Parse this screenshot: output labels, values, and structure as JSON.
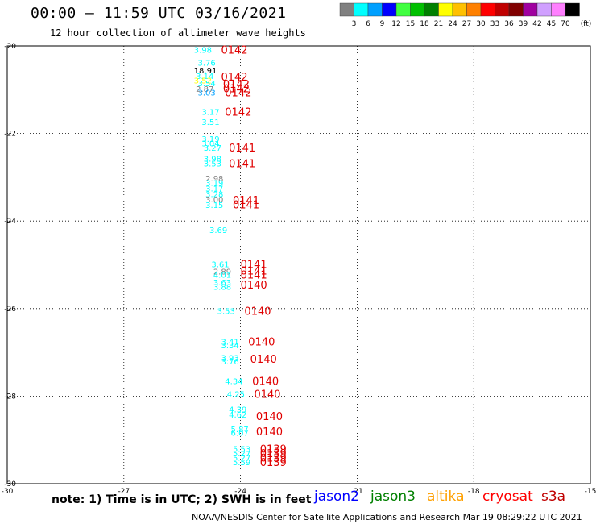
{
  "title": "00:00 – 11:59 UTC 03/16/2021",
  "subtitle": "12 hour collection of altimeter wave heights",
  "note": "note:  1) Time is in UTC; 2) SWH is in feet",
  "credit": "NOAA/NESDIS Center for Satellite Applications and Research    Mar 19 08:29:22 UTC 2021",
  "legend": {
    "unit": "(ft)",
    "labels": [
      "3",
      "6",
      "9",
      "12",
      "15",
      "18",
      "21",
      "24",
      "27",
      "30",
      "33",
      "36",
      "39",
      "42",
      "45",
      "70"
    ],
    "colors": [
      "#808080",
      "#00ffff",
      "#00a0ff",
      "#0000ff",
      "#40ff40",
      "#00c000",
      "#008000",
      "#ffff00",
      "#ffc000",
      "#ff8000",
      "#ff0000",
      "#c00000",
      "#800000",
      "#a000a0",
      "#d0a0ff",
      "#ff80ff",
      "#000000"
    ]
  },
  "satellites": [
    {
      "name": "jason2",
      "color": "#0000ff"
    },
    {
      "name": "jason3",
      "color": "#008000"
    },
    {
      "name": "altika",
      "color": "#ffa000"
    },
    {
      "name": "cryosat",
      "color": "#ff0000"
    },
    {
      "name": "s3a",
      "color": "#c00000"
    }
  ],
  "axes": {
    "x_ticks": [
      "-30",
      "-27",
      "-24",
      "-21",
      "-18",
      "-15"
    ],
    "y_ticks": [
      "-20",
      "-22",
      "-24",
      "-26",
      "-28",
      "-30"
    ]
  },
  "heights": [
    {
      "v": "3.98",
      "x": -25.2,
      "y": -20.08,
      "c": "#00ffff"
    },
    {
      "v": "3.76",
      "x": -25.1,
      "y": -20.38,
      "c": "#00ffff"
    },
    {
      "v": "18.91",
      "x": -25.2,
      "y": -20.55,
      "c": "#000000"
    },
    {
      "v": "3.14",
      "x": -25.15,
      "y": -20.68,
      "c": "#00ffff"
    },
    {
      "v": "3.52",
      "x": -25.2,
      "y": -20.78,
      "c": "#ffff00"
    },
    {
      "v": "3.54",
      "x": -25.1,
      "y": -20.85,
      "c": "#00ffff"
    },
    {
      "v": "2.87",
      "x": -25.15,
      "y": -20.98,
      "c": "#808080"
    },
    {
      "v": "3.03",
      "x": -25.1,
      "y": -21.06,
      "c": "#00a0ff"
    },
    {
      "v": "3.17",
      "x": -25.0,
      "y": -21.5,
      "c": "#00ffff"
    },
    {
      "v": "3.51",
      "x": -25.0,
      "y": -21.73,
      "c": "#00ffff"
    },
    {
      "v": "3.19",
      "x": -25.0,
      "y": -22.12,
      "c": "#00ffff"
    },
    {
      "v": "3.04",
      "x": -25.0,
      "y": -22.22,
      "c": "#00ffff"
    },
    {
      "v": "3.27",
      "x": -24.95,
      "y": -22.32,
      "c": "#00ffff"
    },
    {
      "v": "3.98",
      "x": -24.95,
      "y": -22.57,
      "c": "#00ffff"
    },
    {
      "v": "3.53",
      "x": -24.95,
      "y": -22.68,
      "c": "#00ffff"
    },
    {
      "v": "2.98",
      "x": -24.9,
      "y": -23.02,
      "c": "#808080"
    },
    {
      "v": "3.19",
      "x": -24.9,
      "y": -23.12,
      "c": "#00ffff"
    },
    {
      "v": "3.17",
      "x": -24.9,
      "y": -23.25,
      "c": "#00ffff"
    },
    {
      "v": "3.28",
      "x": -24.9,
      "y": -23.38,
      "c": "#00ffff"
    },
    {
      "v": "3.00",
      "x": -24.9,
      "y": -23.5,
      "c": "#808080"
    },
    {
      "v": "3.15",
      "x": -24.9,
      "y": -23.63,
      "c": "#00ffff"
    },
    {
      "v": "3.69",
      "x": -24.8,
      "y": -24.2,
      "c": "#00ffff"
    },
    {
      "v": "3.61",
      "x": -24.75,
      "y": -24.98,
      "c": "#00ffff"
    },
    {
      "v": "2.89",
      "x": -24.7,
      "y": -25.15,
      "c": "#808080"
    },
    {
      "v": "4.01",
      "x": -24.7,
      "y": -25.22,
      "c": "#00ffff"
    },
    {
      "v": "3.63",
      "x": -24.7,
      "y": -25.4,
      "c": "#00ffff"
    },
    {
      "v": "3.88",
      "x": -24.7,
      "y": -25.5,
      "c": "#00ffff"
    },
    {
      "v": "3.53",
      "x": -24.6,
      "y": -26.05,
      "c": "#00ffff"
    },
    {
      "v": "3.41",
      "x": -24.5,
      "y": -26.75,
      "c": "#00ffff"
    },
    {
      "v": "3.34",
      "x": -24.5,
      "y": -26.83,
      "c": "#00ffff"
    },
    {
      "v": "3.93",
      "x": -24.5,
      "y": -27.12,
      "c": "#00ffff"
    },
    {
      "v": "3.76",
      "x": -24.5,
      "y": -27.2,
      "c": "#00ffff"
    },
    {
      "v": "4.34",
      "x": -24.4,
      "y": -27.65,
      "c": "#00ffff"
    },
    {
      "v": "4.25",
      "x": -24.35,
      "y": -27.95,
      "c": "#00ffff"
    },
    {
      "v": "4.39",
      "x": -24.3,
      "y": -28.3,
      "c": "#00ffff"
    },
    {
      "v": "4.62",
      "x": -24.3,
      "y": -28.42,
      "c": "#00ffff"
    },
    {
      "v": "5.87",
      "x": -24.25,
      "y": -28.75,
      "c": "#00ffff"
    },
    {
      "v": "6.07",
      "x": -24.25,
      "y": -28.83,
      "c": "#00ffff"
    },
    {
      "v": "5.53",
      "x": -24.2,
      "y": -29.2,
      "c": "#00ffff"
    },
    {
      "v": "5.27",
      "x": -24.2,
      "y": -29.3,
      "c": "#00ffff"
    },
    {
      "v": "5.27",
      "x": -24.2,
      "y": -29.4,
      "c": "#00ffff"
    },
    {
      "v": "5.59",
      "x": -24.2,
      "y": -29.5,
      "c": "#00ffff"
    }
  ],
  "passes": [
    {
      "t": "0142",
      "x": -24.5,
      "y": -20.08
    },
    {
      "t": "0142",
      "x": -24.5,
      "y": -20.7
    },
    {
      "t": "0142",
      "x": -24.45,
      "y": -20.87
    },
    {
      "t": "0142",
      "x": -24.45,
      "y": -20.97
    },
    {
      "t": "0142",
      "x": -24.4,
      "y": -21.06
    },
    {
      "t": "0142",
      "x": -24.4,
      "y": -21.5
    },
    {
      "t": "0141",
      "x": -24.3,
      "y": -22.32
    },
    {
      "t": "0141",
      "x": -24.3,
      "y": -22.68
    },
    {
      "t": "0141",
      "x": -24.2,
      "y": -23.52
    },
    {
      "t": "0141",
      "x": -24.2,
      "y": -23.62
    },
    {
      "t": "0141",
      "x": -24.0,
      "y": -24.98
    },
    {
      "t": "0141",
      "x": -24.0,
      "y": -25.13
    },
    {
      "t": "0141",
      "x": -24.0,
      "y": -25.22
    },
    {
      "t": "0140",
      "x": -24.0,
      "y": -25.45
    },
    {
      "t": "0140",
      "x": -23.9,
      "y": -26.05
    },
    {
      "t": "0140",
      "x": -23.8,
      "y": -26.75
    },
    {
      "t": "0140",
      "x": -23.75,
      "y": -27.15
    },
    {
      "t": "0140",
      "x": -23.7,
      "y": -27.65
    },
    {
      "t": "0140",
      "x": -23.65,
      "y": -27.95
    },
    {
      "t": "0140",
      "x": -23.6,
      "y": -28.45
    },
    {
      "t": "0140",
      "x": -23.6,
      "y": -28.8
    },
    {
      "t": "0139",
      "x": -23.5,
      "y": -29.2
    },
    {
      "t": "0139",
      "x": -23.5,
      "y": -29.3
    },
    {
      "t": "0139",
      "x": -23.5,
      "y": -29.4
    },
    {
      "t": "0139",
      "x": -23.5,
      "y": -29.5
    }
  ]
}
